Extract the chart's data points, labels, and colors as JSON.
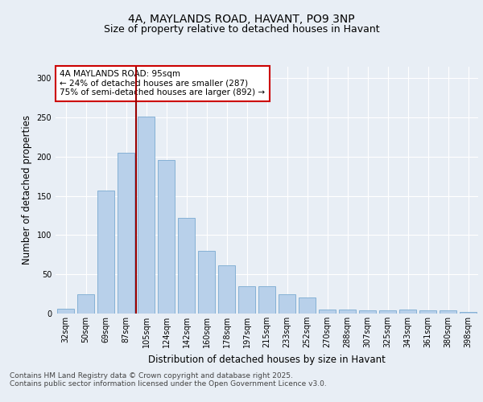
{
  "title_line1": "4A, MAYLANDS ROAD, HAVANT, PO9 3NP",
  "title_line2": "Size of property relative to detached houses in Havant",
  "xlabel": "Distribution of detached houses by size in Havant",
  "ylabel": "Number of detached properties",
  "categories": [
    "32sqm",
    "50sqm",
    "69sqm",
    "87sqm",
    "105sqm",
    "124sqm",
    "142sqm",
    "160sqm",
    "178sqm",
    "197sqm",
    "215sqm",
    "233sqm",
    "252sqm",
    "270sqm",
    "288sqm",
    "307sqm",
    "325sqm",
    "343sqm",
    "361sqm",
    "380sqm",
    "398sqm"
  ],
  "values": [
    6,
    25,
    157,
    205,
    251,
    196,
    122,
    80,
    61,
    35,
    35,
    25,
    20,
    5,
    5,
    4,
    4,
    5,
    4,
    4,
    2
  ],
  "bar_color": "#b8d0ea",
  "bar_edge_color": "#7aaad0",
  "vline_color": "#990000",
  "annotation_text": "4A MAYLANDS ROAD: 95sqm\n← 24% of detached houses are smaller (287)\n75% of semi-detached houses are larger (892) →",
  "annotation_box_color": "#ffffff",
  "annotation_box_edge_color": "#cc0000",
  "ylim": [
    0,
    315
  ],
  "yticks": [
    0,
    50,
    100,
    150,
    200,
    250,
    300
  ],
  "bg_color": "#e8eef5",
  "plot_bg_color": "#e8eef5",
  "footer_line1": "Contains HM Land Registry data © Crown copyright and database right 2025.",
  "footer_line2": "Contains public sector information licensed under the Open Government Licence v3.0.",
  "title_fontsize": 10,
  "subtitle_fontsize": 9,
  "tick_fontsize": 7,
  "label_fontsize": 8.5,
  "annotation_fontsize": 7.5,
  "footer_fontsize": 6.5
}
